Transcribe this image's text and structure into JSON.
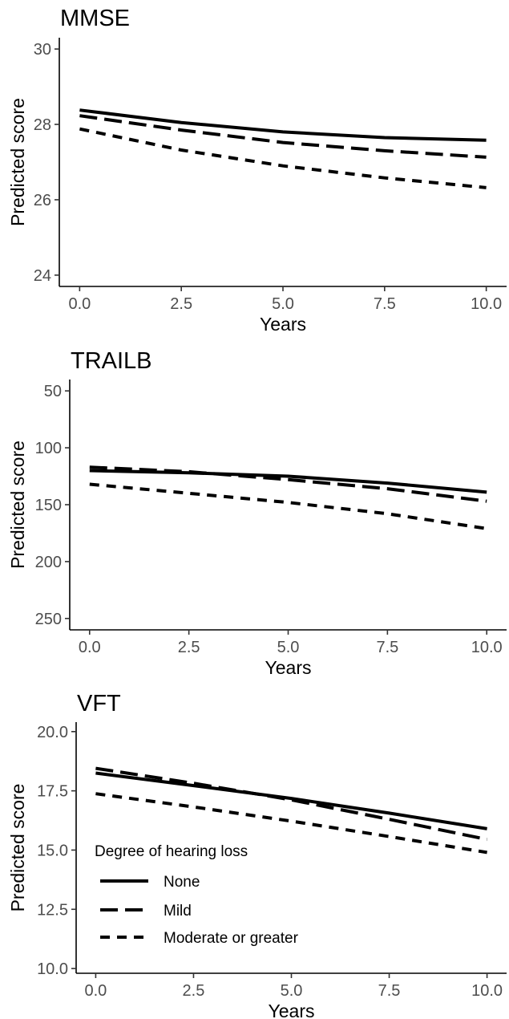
{
  "legend": {
    "title": "Degree of hearing loss",
    "entries": [
      {
        "name": "None",
        "dash": "solid"
      },
      {
        "name": "Mild",
        "dash": "longdash"
      },
      {
        "name": "Moderate or greater",
        "dash": "dashed"
      }
    ],
    "placement": "inside bottom-left of VFT panel"
  },
  "chart_data": [
    {
      "type": "line",
      "title": "MMSE",
      "xlabel": "Years",
      "ylabel": "Predicted score",
      "xlim": [
        -0.5,
        10.5
      ],
      "ylim": [
        23.7,
        30.3
      ],
      "y_reversed": false,
      "x_ticks": [
        0,
        2.5,
        5,
        7.5,
        10
      ],
      "x_tick_labels": [
        "0.0",
        "2.5",
        "5.0",
        "7.5",
        "10.0"
      ],
      "y_ticks": [
        24,
        26,
        28,
        30
      ],
      "y_tick_labels": [
        "24",
        "26",
        "28",
        "30"
      ],
      "grid": false,
      "x": [
        0,
        2.5,
        5,
        7.5,
        10
      ],
      "series": [
        {
          "name": "None",
          "dash": "solid",
          "values": [
            28.38,
            28.05,
            27.8,
            27.65,
            27.58
          ]
        },
        {
          "name": "Mild",
          "dash": "longdash",
          "values": [
            28.23,
            27.85,
            27.52,
            27.3,
            27.13
          ]
        },
        {
          "name": "Moderate or greater",
          "dash": "dashed",
          "values": [
            27.88,
            27.32,
            26.9,
            26.58,
            26.32
          ]
        }
      ]
    },
    {
      "type": "line",
      "title": "TRAILB",
      "xlabel": "Years",
      "ylabel": "Predicted score",
      "xlim": [
        -0.5,
        10.5
      ],
      "ylim": [
        40,
        260
      ],
      "y_reversed": true,
      "x_ticks": [
        0,
        2.5,
        5,
        7.5,
        10
      ],
      "x_tick_labels": [
        "0.0",
        "2.5",
        "5.0",
        "7.5",
        "10.0"
      ],
      "y_ticks": [
        50,
        100,
        150,
        200,
        250
      ],
      "y_tick_labels": [
        "50",
        "100",
        "150",
        "200",
        "250"
      ],
      "grid": false,
      "x": [
        0,
        2.5,
        5,
        7.5,
        10
      ],
      "series": [
        {
          "name": "None",
          "dash": "solid",
          "values": [
            120,
            122,
            125,
            131,
            139
          ]
        },
        {
          "name": "Mild",
          "dash": "longdash",
          "values": [
            117,
            121,
            128,
            136,
            147
          ]
        },
        {
          "name": "Moderate or greater",
          "dash": "dashed",
          "values": [
            132,
            140,
            148,
            158,
            171
          ]
        }
      ]
    },
    {
      "type": "line",
      "title": "VFT",
      "xlabel": "Years",
      "ylabel": "Predicted score",
      "xlim": [
        -0.5,
        10.5
      ],
      "ylim": [
        9.8,
        20.4
      ],
      "y_reversed": false,
      "x_ticks": [
        0,
        2.5,
        5,
        7.5,
        10
      ],
      "x_tick_labels": [
        "0.0",
        "2.5",
        "5.0",
        "7.5",
        "10.0"
      ],
      "y_ticks": [
        10,
        12.5,
        15,
        17.5,
        20
      ],
      "y_tick_labels": [
        "10.0",
        "12.5",
        "15.0",
        "17.5",
        "20.0"
      ],
      "grid": false,
      "x": [
        0,
        2.5,
        5,
        7.5,
        10
      ],
      "series": [
        {
          "name": "None",
          "dash": "solid",
          "values": [
            18.25,
            17.72,
            17.18,
            16.56,
            15.9
          ]
        },
        {
          "name": "Mild",
          "dash": "longdash",
          "values": [
            18.45,
            17.82,
            17.12,
            16.3,
            15.45
          ]
        },
        {
          "name": "Moderate or greater",
          "dash": "dashed",
          "values": [
            17.38,
            16.82,
            16.22,
            15.57,
            14.9
          ]
        }
      ]
    }
  ]
}
